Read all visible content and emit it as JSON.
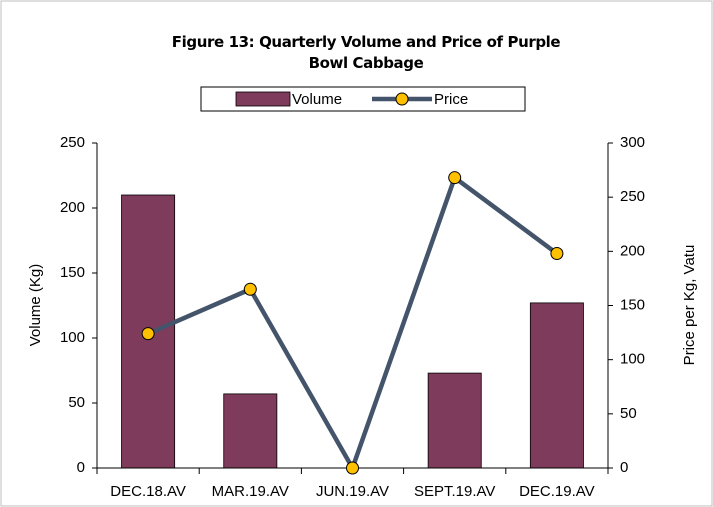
{
  "chart_data": {
    "type": "bar_line",
    "title": "Figure 13: Quarterly Volume and Price of Purple Bowl Cabbage",
    "categories": [
      "DEC.18.AV",
      "MAR.19.AV",
      "JUN.19.AV",
      "SEPT.19.AV",
      "DEC.19.AV"
    ],
    "series": [
      {
        "name": "Volume",
        "type": "bar",
        "color": "#7f3b5b",
        "values": [
          210,
          57,
          0,
          73,
          127
        ]
      },
      {
        "name": "Price",
        "type": "line",
        "axis": "y2",
        "color": "#44546a",
        "marker_color": "#ffc000",
        "values": [
          124,
          165,
          0,
          268,
          198
        ]
      }
    ],
    "ylabel": "Volume (Kg)",
    "y2label": "Price per Kg, Vatu",
    "ylim": [
      0,
      250
    ],
    "yticks": [
      0,
      50,
      100,
      150,
      200,
      250
    ],
    "y2lim": [
      0,
      300
    ],
    "y2ticks": [
      0,
      50,
      100,
      150,
      200,
      250,
      300
    ],
    "grid": false,
    "legend": "top"
  }
}
